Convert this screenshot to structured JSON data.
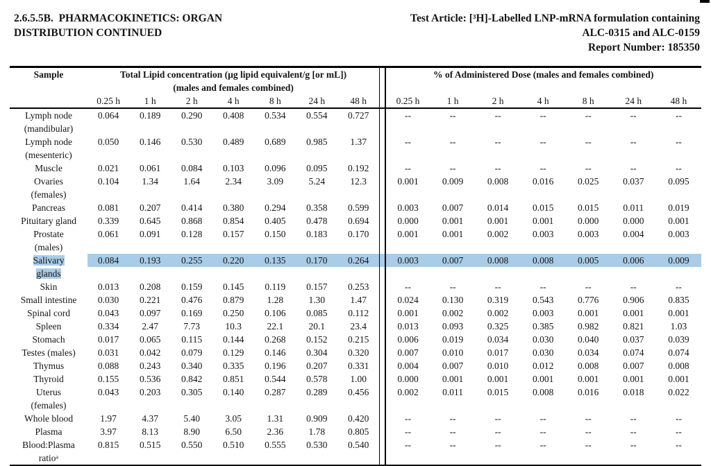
{
  "page": {
    "section_title": "2.6.5.5B.  PHARMACOKINETICS: ORGAN\nDISTRIBUTION CONTINUED",
    "test_article": "Test Article: [³H]-Labelled LNP-mRNA formulation containing\nALC-0315 and ALC-0159\nReport Number: 185350"
  },
  "table": {
    "col_sample": "Sample",
    "group1_header": "Total Lipid concentration (µg lipid equivalent/g [or mL])\n(males and females combined)",
    "group2_header": "% of Administered Dose (males and females combined)",
    "timepoints": [
      "0.25 h",
      "1 h",
      "2 h",
      "4 h",
      "8 h",
      "24 h",
      "48 h"
    ],
    "highlight_color": "#aacce6",
    "rows": [
      {
        "sample": "Lymph node\n(mandibular)",
        "lipid": [
          "0.064",
          "0.189",
          "0.290",
          "0.408",
          "0.534",
          "0.554",
          "0.727"
        ],
        "dose": [
          "--",
          "--",
          "--",
          "--",
          "--",
          "--",
          "--"
        ]
      },
      {
        "sample": "Lymph node\n(mesenteric)",
        "lipid": [
          "0.050",
          "0.146",
          "0.530",
          "0.489",
          "0.689",
          "0.985",
          "1.37"
        ],
        "dose": [
          "--",
          "--",
          "--",
          "--",
          "--",
          "--",
          "--"
        ]
      },
      {
        "sample": "Muscle",
        "lipid": [
          "0.021",
          "0.061",
          "0.084",
          "0.103",
          "0.096",
          "0.095",
          "0.192"
        ],
        "dose": [
          "--",
          "--",
          "--",
          "--",
          "--",
          "--",
          "--"
        ]
      },
      {
        "sample": "Ovaries\n(females)",
        "lipid": [
          "0.104",
          "1.34",
          "1.64",
          "2.34",
          "3.09",
          "5.24",
          "12.3"
        ],
        "dose": [
          "0.001",
          "0.009",
          "0.008",
          "0.016",
          "0.025",
          "0.037",
          "0.095"
        ]
      },
      {
        "sample": "Pancreas",
        "lipid": [
          "0.081",
          "0.207",
          "0.414",
          "0.380",
          "0.294",
          "0.358",
          "0.599"
        ],
        "dose": [
          "0.003",
          "0.007",
          "0.014",
          "0.015",
          "0.015",
          "0.011",
          "0.019"
        ]
      },
      {
        "sample": "Pituitary gland",
        "lipid": [
          "0.339",
          "0.645",
          "0.868",
          "0.854",
          "0.405",
          "0.478",
          "0.694"
        ],
        "dose": [
          "0.000",
          "0.001",
          "0.001",
          "0.001",
          "0.000",
          "0.000",
          "0.001"
        ]
      },
      {
        "sample": "Prostate\n(males)",
        "lipid": [
          "0.061",
          "0.091",
          "0.128",
          "0.157",
          "0.150",
          "0.183",
          "0.170"
        ],
        "dose": [
          "0.001",
          "0.001",
          "0.002",
          "0.003",
          "0.003",
          "0.004",
          "0.003"
        ]
      },
      {
        "sample": "Salivary\nglands",
        "highlight": true,
        "lipid": [
          "0.084",
          "0.193",
          "0.255",
          "0.220",
          "0.135",
          "0.170",
          "0.264"
        ],
        "dose": [
          "0.003",
          "0.007",
          "0.008",
          "0.008",
          "0.005",
          "0.006",
          "0.009"
        ]
      },
      {
        "sample": "Skin",
        "lipid": [
          "0.013",
          "0.208",
          "0.159",
          "0.145",
          "0.119",
          "0.157",
          "0.253"
        ],
        "dose": [
          "--",
          "--",
          "--",
          "--",
          "--",
          "--",
          "--"
        ]
      },
      {
        "sample": "Small intestine",
        "lipid": [
          "0.030",
          "0.221",
          "0.476",
          "0.879",
          "1.28",
          "1.30",
          "1.47"
        ],
        "dose": [
          "0.024",
          "0.130",
          "0.319",
          "0.543",
          "0.776",
          "0.906",
          "0.835"
        ]
      },
      {
        "sample": "Spinal cord",
        "lipid": [
          "0.043",
          "0.097",
          "0.169",
          "0.250",
          "0.106",
          "0.085",
          "0.112"
        ],
        "dose": [
          "0.001",
          "0.002",
          "0.002",
          "0.003",
          "0.001",
          "0.001",
          "0.001"
        ]
      },
      {
        "sample": "Spleen",
        "lipid": [
          "0.334",
          "2.47",
          "7.73",
          "10.3",
          "22.1",
          "20.1",
          "23.4"
        ],
        "dose": [
          "0.013",
          "0.093",
          "0.325",
          "0.385",
          "0.982",
          "0.821",
          "1.03"
        ]
      },
      {
        "sample": "Stomach",
        "lipid": [
          "0.017",
          "0.065",
          "0.115",
          "0.144",
          "0.268",
          "0.152",
          "0.215"
        ],
        "dose": [
          "0.006",
          "0.019",
          "0.034",
          "0.030",
          "0.040",
          "0.037",
          "0.039"
        ]
      },
      {
        "sample": "Testes (males)",
        "lipid": [
          "0.031",
          "0.042",
          "0.079",
          "0.129",
          "0.146",
          "0.304",
          "0.320"
        ],
        "dose": [
          "0.007",
          "0.010",
          "0.017",
          "0.030",
          "0.034",
          "0.074",
          "0.074"
        ]
      },
      {
        "sample": "Thymus",
        "lipid": [
          "0.088",
          "0.243",
          "0.340",
          "0.335",
          "0.196",
          "0.207",
          "0.331"
        ],
        "dose": [
          "0.004",
          "0.007",
          "0.010",
          "0.012",
          "0.008",
          "0.007",
          "0.008"
        ]
      },
      {
        "sample": "Thyroid",
        "lipid": [
          "0.155",
          "0.536",
          "0.842",
          "0.851",
          "0.544",
          "0.578",
          "1.00"
        ],
        "dose": [
          "0.000",
          "0.001",
          "0.001",
          "0.001",
          "0.001",
          "0.001",
          "0.001"
        ]
      },
      {
        "sample": "Uterus\n(females)",
        "lipid": [
          "0.043",
          "0.203",
          "0.305",
          "0.140",
          "0.287",
          "0.289",
          "0.456"
        ],
        "dose": [
          "0.002",
          "0.011",
          "0.015",
          "0.008",
          "0.016",
          "0.018",
          "0.022"
        ]
      },
      {
        "sample": "Whole blood",
        "lipid": [
          "1.97",
          "4.37",
          "5.40",
          "3.05",
          "1.31",
          "0.909",
          "0.420"
        ],
        "dose": [
          "--",
          "--",
          "--",
          "--",
          "--",
          "--",
          "--"
        ]
      },
      {
        "sample": "Plasma",
        "lipid": [
          "3.97",
          "8.13",
          "8.90",
          "6.50",
          "2.36",
          "1.78",
          "0.805"
        ],
        "dose": [
          "--",
          "--",
          "--",
          "--",
          "--",
          "--",
          "--"
        ]
      },
      {
        "sample": "Blood:Plasma\nratioᵃ",
        "lipid": [
          "0.815",
          "0.515",
          "0.550",
          "0.510",
          "0.555",
          "0.530",
          "0.540"
        ],
        "dose": [
          "--",
          "--",
          "--",
          "--",
          "--",
          "--",
          "--"
        ]
      }
    ]
  }
}
